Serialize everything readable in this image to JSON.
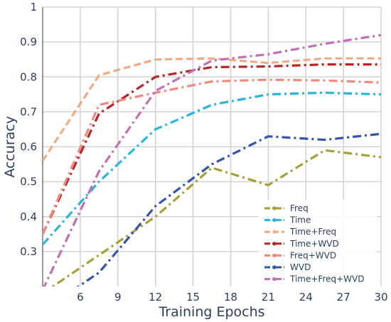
{
  "chart_data": {
    "type": "line",
    "title": "",
    "xlabel": "Training Epochs",
    "ylabel": "Accuracy",
    "xlim": [
      3,
      30
    ],
    "ylim": [
      0.2,
      1.0
    ],
    "xticks": [
      6,
      9,
      12,
      15,
      18,
      21,
      24,
      27,
      30
    ],
    "yticks": [
      0.3,
      0.4,
      0.5,
      0.6,
      0.7,
      0.8,
      0.9,
      1.0
    ],
    "ytick_labels": [
      "0.3",
      "0.4",
      "0.5",
      "0.6",
      "0.7",
      "0.8",
      "0.9",
      "1"
    ],
    "grid": true,
    "legend_position": "bottom-right",
    "series": [
      {
        "name": "Freq",
        "color": "#a5a038",
        "dash": "dashdot",
        "x": [
          3,
          7.5,
          12,
          16.5,
          21,
          25.5,
          30
        ],
        "y": [
          0.18,
          0.29,
          0.4,
          0.54,
          0.49,
          0.59,
          0.57
        ]
      },
      {
        "name": "Time",
        "color": "#2ab3dc",
        "dash": "dashdot",
        "x": [
          3,
          7.5,
          12,
          16.5,
          21,
          25.5,
          30
        ],
        "y": [
          0.32,
          0.5,
          0.65,
          0.72,
          0.75,
          0.755,
          0.75
        ]
      },
      {
        "name": "Time+Freq",
        "color": "#f2aa84",
        "dash": "dashed",
        "x": [
          3,
          7.5,
          12,
          16.5,
          21,
          25.5,
          30
        ],
        "y": [
          0.56,
          0.805,
          0.85,
          0.853,
          0.84,
          0.853,
          0.853
        ]
      },
      {
        "name": "Time+WVD",
        "color": "#b52525",
        "dash": "dashdot",
        "x": [
          3,
          7.5,
          12,
          16.5,
          21,
          25.5,
          30
        ],
        "y": [
          0.35,
          0.695,
          0.8,
          0.828,
          0.83,
          0.836,
          0.836
        ]
      },
      {
        "name": "Freq+WVD",
        "color": "#ef8a7f",
        "dash": "dashdot",
        "x": [
          3,
          7.5,
          12,
          16.5,
          21,
          25.5,
          30
        ],
        "y": [
          0.35,
          0.72,
          0.755,
          0.787,
          0.792,
          0.79,
          0.784
        ]
      },
      {
        "name": "WVD",
        "color": "#3554a8",
        "dash": "dashdot",
        "x": [
          3,
          7.5,
          12,
          16.5,
          21,
          25.5,
          30
        ],
        "y": [
          0.13,
          0.24,
          0.43,
          0.55,
          0.63,
          0.62,
          0.637
        ]
      },
      {
        "name": "Time+Freq+WVD",
        "color": "#c46eb2",
        "dash": "dashdot",
        "x": [
          3,
          7.5,
          12,
          16.5,
          21,
          25.5,
          30
        ],
        "y": [
          0.19,
          0.53,
          0.76,
          0.847,
          0.865,
          0.895,
          0.92
        ]
      }
    ]
  }
}
